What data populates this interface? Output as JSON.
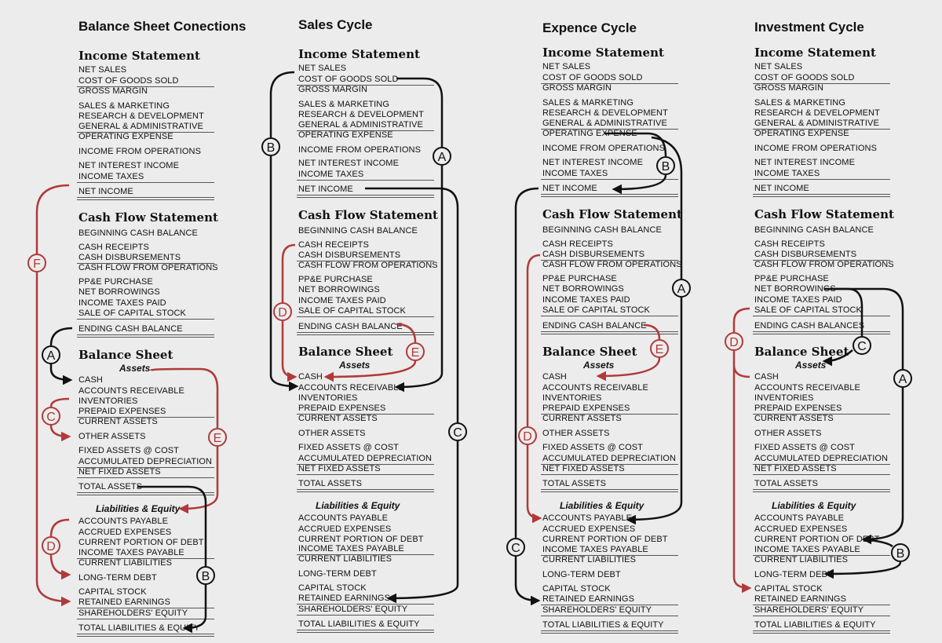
{
  "colors": {
    "black_flow": "#111111",
    "red_flow": "#b03a3a",
    "background": "#ececec"
  },
  "columns": [
    {
      "title": "Balance Sheet Conections",
      "cash_flow_last": "ENDING CASH BALANCE",
      "flow_labels": [
        "F",
        "A",
        "C",
        "E",
        "D",
        "B"
      ]
    },
    {
      "title": "Sales Cycle",
      "cash_flow_last": "ENDING CASH BALANCE",
      "flow_labels": [
        "B",
        "A",
        "C",
        "D",
        "E"
      ]
    },
    {
      "title": "Expence Cycle",
      "cash_flow_last": "ENDING CASH BALANCE",
      "flow_labels": [
        "B",
        "A",
        "C",
        "D",
        "E"
      ]
    },
    {
      "title": "Investment Cycle",
      "cash_flow_last": "ENDING CASH BALANCES",
      "flow_labels": [
        "C",
        "A",
        "B",
        "D"
      ]
    }
  ],
  "income_statement": {
    "heading": "Income Statement",
    "rows": [
      "NET SALES",
      "COST OF GOODS SOLD",
      "GROSS MARGIN",
      "SALES & MARKETING",
      "RESEARCH & DEVELOPMENT",
      "GENERAL & ADMINISTRATIVE",
      "OPERATING EXPENSE",
      "INCOME FROM OPERATIONS",
      "NET INTEREST INCOME",
      "INCOME TAXES",
      "NET INCOME"
    ]
  },
  "cash_flow": {
    "heading": "Cash Flow Statement",
    "rows": [
      "BEGINNING CASH BALANCE",
      "CASH RECEIPTS",
      "CASH DISBURSEMENTS",
      "CASH FLOW FROM OPERATIONS",
      "PP&E PURCHASE",
      "NET BORROWINGS",
      "INCOME TAXES PAID",
      "SALE OF CAPITAL STOCK"
    ]
  },
  "balance_sheet": {
    "heading": "Balance Sheet",
    "assets_label": "Assets",
    "asset_rows": [
      "CASH",
      "ACCOUNTS RECEIVABLE",
      "INVENTORIES",
      "PREPAID EXPENSES",
      "CURRENT ASSETS",
      "OTHER ASSETS",
      "FIXED ASSETS @ COST",
      "ACCUMULATED DEPRECIATION",
      "NET FIXED ASSETS",
      "TOTAL ASSETS"
    ],
    "liabilities_label": "Liabilities & Equity",
    "liability_rows": [
      "ACCOUNTS PAYABLE",
      "ACCRUED EXPENSES",
      "CURRENT PORTION OF DEBT",
      "INCOME TAXES PAYABLE",
      "CURRENT LIABILITIES",
      "LONG-TERM DEBT",
      "CAPITAL STOCK",
      "RETAINED EARNINGS",
      "SHAREHOLDERS' EQUITY",
      "TOTAL LIABILITIES & EQUITY"
    ]
  }
}
